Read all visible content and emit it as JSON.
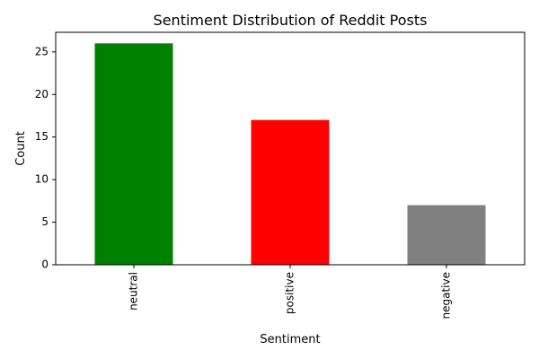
{
  "chart_data": {
    "type": "bar",
    "title": "Sentiment Distribution of Reddit Posts",
    "xlabel": "Sentiment",
    "ylabel": "Count",
    "categories": [
      "neutral",
      "positive",
      "negative"
    ],
    "values": [
      26,
      17,
      7
    ],
    "colors": [
      "#008000",
      "#ff0000",
      "#808080"
    ],
    "ylim": [
      0,
      27.3
    ],
    "yticks": [
      0,
      5,
      10,
      15,
      20,
      25
    ],
    "grid": false,
    "legend": "none",
    "xtick_rotation": "vertical"
  }
}
